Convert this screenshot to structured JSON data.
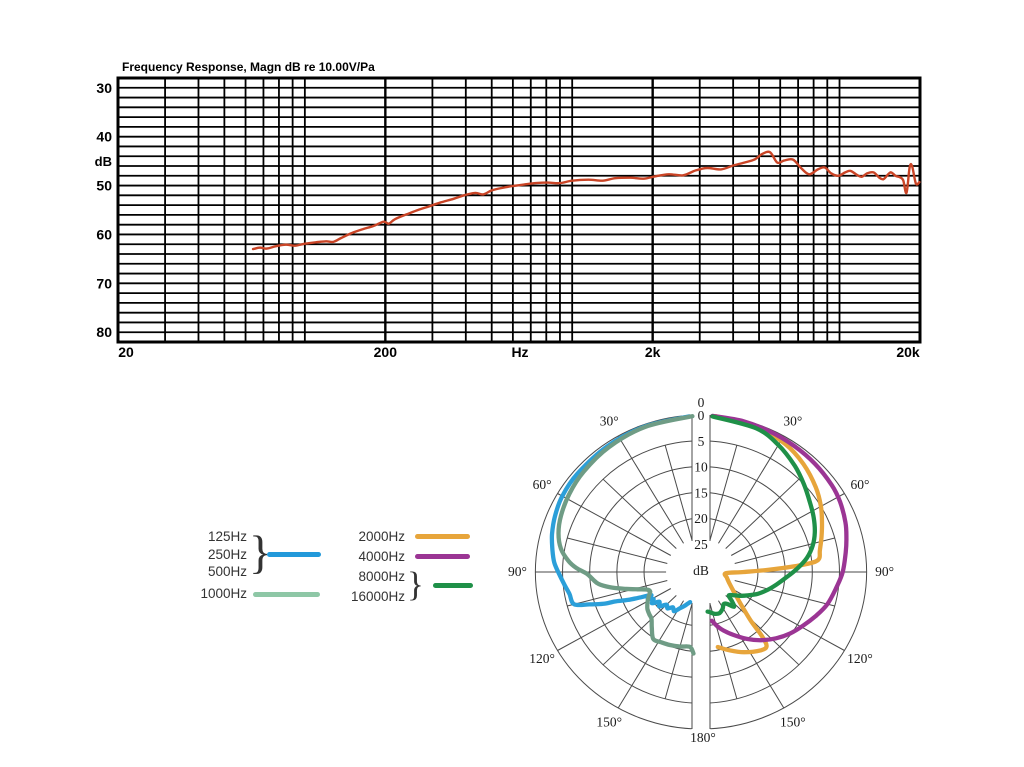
{
  "chart_data": [
    {
      "type": "line",
      "id": "frequency-response",
      "title": "Frequency Response, Magn dB re 10.00V/Pa",
      "ylabel": "dB",
      "xunit": "Hz",
      "x_scale": "log",
      "xlim": [
        20,
        20000
      ],
      "ylim_db": [
        28,
        82
      ],
      "y_inverted": true,
      "grid_db_step": 2,
      "yticks": [
        30,
        40,
        50,
        60,
        70,
        80
      ],
      "xticks": [
        {
          "label": "20",
          "f": 20
        },
        {
          "label": "200",
          "f": 200
        },
        {
          "label": "2k",
          "f": 2000
        },
        {
          "label": "20k",
          "f": 20000
        }
      ],
      "curve_color": "#c94426",
      "points_hz_db": [
        [
          64,
          63
        ],
        [
          68,
          62.7
        ],
        [
          72,
          62.9
        ],
        [
          78,
          62.4
        ],
        [
          85,
          62.1
        ],
        [
          92,
          62.3
        ],
        [
          100,
          61.9
        ],
        [
          110,
          61.6
        ],
        [
          120,
          61.4
        ],
        [
          128,
          61.5
        ],
        [
          137,
          60.7
        ],
        [
          150,
          59.7
        ],
        [
          165,
          58.9
        ],
        [
          180,
          58.3
        ],
        [
          197,
          57.4
        ],
        [
          206,
          57.8
        ],
        [
          217,
          56.9
        ],
        [
          240,
          55.9
        ],
        [
          265,
          55
        ],
        [
          290,
          54.3
        ],
        [
          320,
          53.5
        ],
        [
          360,
          52.7
        ],
        [
          400,
          51.9
        ],
        [
          435,
          51.5
        ],
        [
          465,
          51.8
        ],
        [
          500,
          51
        ],
        [
          545,
          50.5
        ],
        [
          600,
          50.1
        ],
        [
          660,
          49.8
        ],
        [
          730,
          49.5
        ],
        [
          810,
          49.4
        ],
        [
          900,
          49.5
        ],
        [
          1000,
          49
        ],
        [
          1150,
          48.8
        ],
        [
          1300,
          49
        ],
        [
          1450,
          48.5
        ],
        [
          1650,
          48.4
        ],
        [
          1850,
          48.6
        ],
        [
          2050,
          48.1
        ],
        [
          2300,
          47.7
        ],
        [
          2600,
          47.9
        ],
        [
          2900,
          46.9
        ],
        [
          3200,
          46.4
        ],
        [
          3600,
          46.7
        ],
        [
          4000,
          45.9
        ],
        [
          4400,
          45.3
        ],
        [
          4800,
          44.7
        ],
        [
          5150,
          43.5
        ],
        [
          5500,
          43.2
        ],
        [
          5850,
          45.3
        ],
        [
          6200,
          44.9
        ],
        [
          6700,
          44.7
        ],
        [
          7200,
          46.5
        ],
        [
          7700,
          47.7
        ],
        [
          8300,
          46.7
        ],
        [
          8800,
          46.3
        ],
        [
          9300,
          47.5
        ],
        [
          9900,
          48
        ],
        [
          10500,
          47.3
        ],
        [
          11000,
          47
        ],
        [
          11600,
          47.8
        ],
        [
          12100,
          48.2
        ],
        [
          12700,
          47.5
        ],
        [
          13400,
          47.3
        ],
        [
          14100,
          48.4
        ],
        [
          14600,
          48.7
        ],
        [
          15200,
          47.7
        ],
        [
          15600,
          47.3
        ],
        [
          16200,
          48
        ],
        [
          16800,
          48.3
        ],
        [
          17300,
          48.9
        ],
        [
          17800,
          51.5
        ],
        [
          18300,
          46.2
        ],
        [
          18700,
          46.1
        ],
        [
          19300,
          49.6
        ],
        [
          19900,
          49.3
        ]
      ]
    },
    {
      "type": "polar",
      "id": "directivity-pattern",
      "unit": "dB",
      "rings_db": [
        0,
        5,
        10,
        15,
        20,
        25
      ],
      "ring_labels": [
        "0",
        "5",
        "10",
        "15",
        "20",
        "25"
      ],
      "center_label": "dB",
      "angle_labels": [
        {
          "text": "0",
          "deg": 0
        },
        {
          "text": "30°",
          "deg": 30
        },
        {
          "text": "60°",
          "deg": 60
        },
        {
          "text": "90°",
          "deg": 90
        },
        {
          "text": "120°",
          "deg": 120
        },
        {
          "text": "150°",
          "deg": 150
        },
        {
          "text": "180°",
          "deg": 180
        }
      ],
      "series": [
        {
          "name": "125Hz-250Hz-500Hz",
          "side": "left",
          "color": "#2b9fd9",
          "points_deg_db": [
            [
              4,
              0.2
            ],
            [
              20,
              0.4
            ],
            [
              35,
              0.6
            ],
            [
              50,
              0.8
            ],
            [
              60,
              1
            ],
            [
              68,
              1.5
            ],
            [
              75,
              2.1
            ],
            [
              81,
              2.8
            ],
            [
              86,
              3.4
            ],
            [
              91,
              4.4
            ],
            [
              96,
              5.3
            ],
            [
              100,
              5.9
            ],
            [
              105,
              6.3
            ],
            [
              107,
              9
            ],
            [
              109,
              11.5
            ],
            [
              110,
              13.8
            ],
            [
              112,
              16
            ],
            [
              114,
              18.4
            ],
            [
              116,
              20.3
            ],
            [
              118,
              19.4
            ],
            [
              121,
              20.3
            ],
            [
              124,
              19.6
            ],
            [
              127,
              20.9
            ],
            [
              131,
              20.3
            ],
            [
              135,
              21.5
            ],
            [
              139,
              21.1
            ],
            [
              143,
              21.9
            ],
            [
              147,
              21.4
            ],
            [
              151,
              22.4
            ],
            [
              155,
              23.2
            ],
            [
              158,
              23.8
            ],
            [
              161,
              24.3
            ]
          ]
        },
        {
          "name": "1000Hz",
          "side": "left",
          "color": "#6f9c85",
          "points_deg_db": [
            [
              3,
              0.2
            ],
            [
              20,
              0.5
            ],
            [
              35,
              0.9
            ],
            [
              48,
              1.4
            ],
            [
              58,
              1.9
            ],
            [
              67,
              2.5
            ],
            [
              74,
              3.2
            ],
            [
              80,
              4.3
            ],
            [
              85,
              6
            ],
            [
              88,
              7.5
            ],
            [
              91,
              9.5
            ],
            [
              94,
              10.5
            ],
            [
              97,
              11.5
            ],
            [
              100,
              13.5
            ],
            [
              103,
              16
            ],
            [
              106,
              18.3
            ],
            [
              109,
              20
            ],
            [
              112,
              20.4
            ],
            [
              116,
              19.8
            ],
            [
              121,
              19
            ],
            [
              126,
              18.3
            ],
            [
              131,
              17.9
            ],
            [
              135,
              17.6
            ],
            [
              140,
              16.4
            ],
            [
              146,
              14.8
            ],
            [
              152,
              15
            ],
            [
              158,
              15.2
            ],
            [
              165,
              15.5
            ],
            [
              172,
              15.8
            ],
            [
              175,
              14.6
            ]
          ]
        },
        {
          "name": "2000Hz",
          "side": "right",
          "color": "#e7a53b",
          "points_deg_db": [
            [
              5,
              0.1
            ],
            [
              20,
              0.5
            ],
            [
              32,
              1.2
            ],
            [
              42,
              2.3
            ],
            [
              52,
              3.7
            ],
            [
              60,
              5
            ],
            [
              67,
              6.3
            ],
            [
              73,
              7.3
            ],
            [
              79,
              8.2
            ],
            [
              84,
              8.9
            ],
            [
              86,
              12.4
            ],
            [
              88,
              18
            ],
            [
              90,
              22.6
            ],
            [
              93,
              25.9
            ],
            [
              103,
              25.6
            ],
            [
              112,
              24.9
            ],
            [
              122,
              23.4
            ],
            [
              131,
              20.6
            ],
            [
              136,
              17.2
            ],
            [
              138,
              13.7
            ],
            [
              140,
              11.7
            ],
            [
              144,
              11.7
            ],
            [
              153,
              13
            ],
            [
              161,
              14.4
            ],
            [
              168,
              15.6
            ]
          ]
        },
        {
          "name": "4000Hz",
          "side": "right",
          "color": "#9b3594",
          "points_deg_db": [
            [
              4,
              0.1
            ],
            [
              15,
              0.2
            ],
            [
              25,
              0.4
            ],
            [
              35,
              0.6
            ],
            [
              45,
              0.8
            ],
            [
              55,
              1.1
            ],
            [
              62,
              1.5
            ],
            [
              70,
              2.2
            ],
            [
              76,
              2.9
            ],
            [
              82,
              3.6
            ],
            [
              90,
              4.4
            ],
            [
              97,
              5.4
            ],
            [
              105,
              6.4
            ],
            [
              112,
              7.7
            ],
            [
              119,
              9
            ],
            [
              126,
              10.2
            ],
            [
              133,
              11.6
            ],
            [
              140,
              13.2
            ],
            [
              147,
              15
            ],
            [
              154,
              16.9
            ],
            [
              160,
              18.4
            ],
            [
              164,
              19.5
            ],
            [
              168,
              20.8
            ]
          ]
        },
        {
          "name": "8000Hz-16000Hz",
          "side": "right",
          "color": "#1f9048",
          "points_deg_db": [
            [
              4,
              0.2
            ],
            [
              20,
              0.8
            ],
            [
              30,
              2
            ],
            [
              40,
              3.6
            ],
            [
              48,
              5
            ],
            [
              56,
              6.3
            ],
            [
              63,
              7.2
            ],
            [
              70,
              8.2
            ],
            [
              76,
              9.3
            ],
            [
              82,
              10.8
            ],
            [
              88,
              12.8
            ],
            [
              94,
              14.8
            ],
            [
              100,
              16.4
            ],
            [
              106,
              17.8
            ],
            [
              112,
              19.2
            ],
            [
              118,
              20.8
            ],
            [
              123,
              22
            ],
            [
              128,
              23.2
            ],
            [
              132,
              23.6
            ],
            [
              135,
              22.4
            ],
            [
              138,
              21.4
            ],
            [
              142,
              22.6
            ],
            [
              146,
              23
            ],
            [
              151,
              22.3
            ],
            [
              157,
              21.8
            ],
            [
              163,
              22
            ],
            [
              168,
              22.5
            ],
            [
              171,
              22.7
            ]
          ]
        }
      ]
    }
  ],
  "legend": {
    "brace": "}",
    "items": [
      {
        "label": "125Hz"
      },
      {
        "label": "250Hz"
      },
      {
        "label": "500Hz"
      },
      {
        "label": "1000Hz"
      },
      {
        "label": "2000Hz"
      },
      {
        "label": "4000Hz"
      },
      {
        "label": "8000Hz"
      },
      {
        "label": "16000Hz"
      }
    ],
    "swatches": [
      {
        "name": "swatch-125-250-500Hz",
        "color": "#2299da"
      },
      {
        "name": "swatch-1000Hz",
        "color": "#8ec7a6"
      },
      {
        "name": "swatch-2000Hz",
        "color": "#e7a53b"
      },
      {
        "name": "swatch-4000Hz",
        "color": "#9b3594"
      },
      {
        "name": "swatch-8000-16000Hz",
        "color": "#1f9048"
      }
    ]
  }
}
